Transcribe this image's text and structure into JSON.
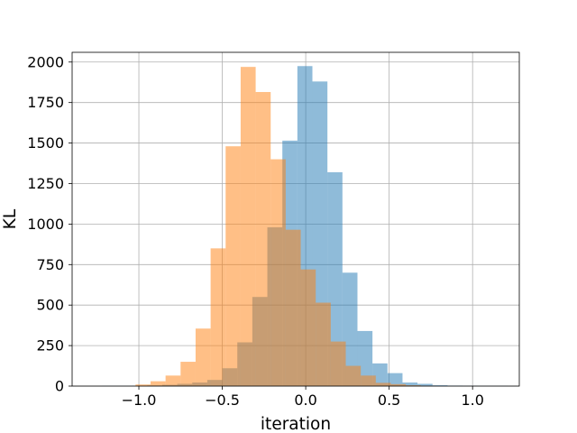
{
  "chart_data": {
    "type": "bar",
    "xlabel": "iteration",
    "ylabel": "KL",
    "xlim": [
      -1.4,
      1.28
    ],
    "ylim": [
      0,
      2060
    ],
    "grid": true,
    "bin_width": 0.09,
    "x_ticks": [
      -1.0,
      -0.5,
      0.0,
      0.5,
      1.0
    ],
    "x_tick_labels": [
      "−1.0",
      "−0.5",
      "0.0",
      "0.5",
      "1.0"
    ],
    "y_ticks": [
      0,
      250,
      500,
      750,
      1000,
      1250,
      1500,
      1750,
      2000
    ],
    "y_tick_labels": [
      "0",
      "250",
      "500",
      "750",
      "1000",
      "1250",
      "1500",
      "1750",
      "2000"
    ],
    "series": [
      {
        "color": "#1f77b4",
        "opacity": 0.5,
        "bin_left_edges": [
          -1.22,
          -1.13,
          -1.04,
          -0.95,
          -0.86,
          -0.77,
          -0.68,
          -0.59,
          -0.5,
          -0.41,
          -0.32,
          -0.23,
          -0.14,
          -0.05,
          0.04,
          0.13,
          0.22,
          0.31,
          0.4,
          0.49,
          0.58,
          0.67,
          0.76,
          0.85,
          0.94,
          1.03,
          1.12
        ],
        "values": [
          1,
          1,
          2,
          4,
          8,
          14,
          22,
          38,
          110,
          270,
          550,
          980,
          1515,
          1975,
          1880,
          1320,
          700,
          340,
          140,
          80,
          22,
          14,
          5,
          3,
          2,
          1,
          1
        ]
      },
      {
        "color": "#ff7f0e",
        "opacity": 0.5,
        "bin_left_edges": [
          -1.02,
          -0.93,
          -0.84,
          -0.75,
          -0.66,
          -0.57,
          -0.48,
          -0.39,
          -0.3,
          -0.21,
          -0.12,
          -0.03,
          0.06,
          0.15,
          0.24,
          0.33,
          0.42,
          0.51,
          0.6,
          0.69
        ],
        "values": [
          10,
          30,
          65,
          150,
          355,
          850,
          1480,
          1970,
          1815,
          1400,
          965,
          720,
          515,
          275,
          125,
          65,
          20,
          12,
          5,
          2
        ]
      }
    ]
  }
}
